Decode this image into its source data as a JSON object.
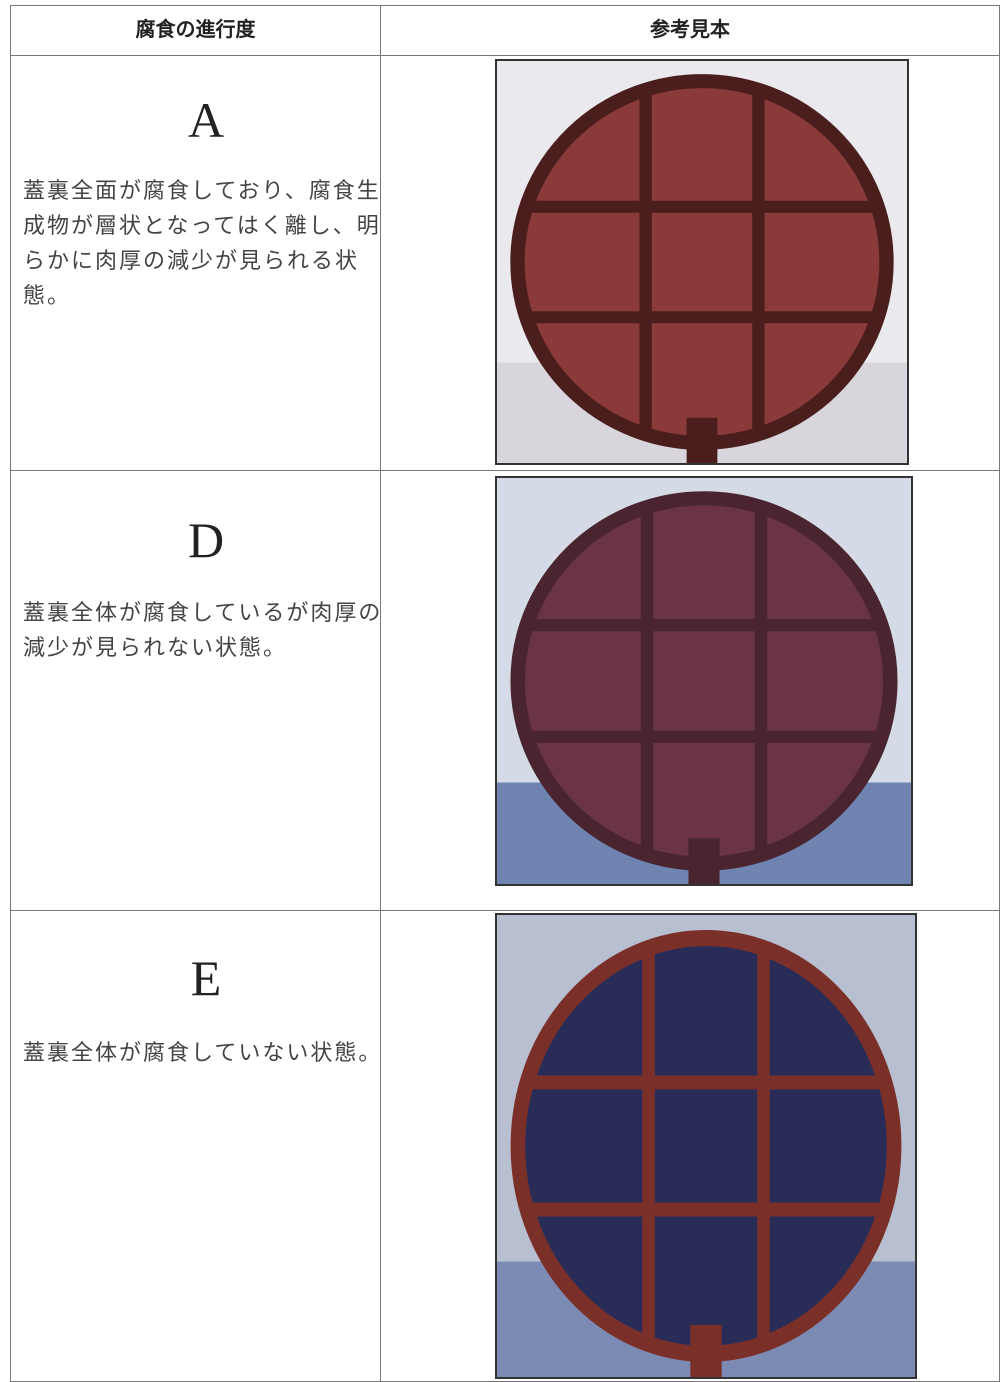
{
  "table": {
    "header": [
      "腐食の進行度",
      "参考見本"
    ],
    "rows": [
      {
        "grade": "A",
        "description": "蓋裏全面が腐食しており、腐食生成物が層状となってはく離し、明らかに肉厚の減少が見られる状態。"
      },
      {
        "grade": "D",
        "description": "蓋裏全体が腐食しているが肉厚の減少が見られない状態。"
      },
      {
        "grade": "E",
        "description": "蓋裏全体が腐食していない状態。"
      }
    ]
  }
}
